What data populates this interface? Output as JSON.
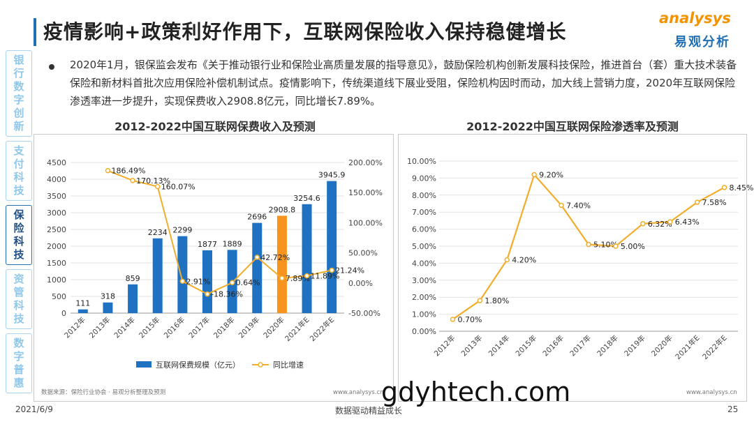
{
  "title": "疫情影响+政策利好作用下，互联网保险收入保持稳健增长",
  "logo": {
    "en": "analysys",
    "cn": "易观分析"
  },
  "sidebar": {
    "items": [
      {
        "label": "银行数字创新",
        "active": false
      },
      {
        "label": "支付科技",
        "active": false
      },
      {
        "label": "保险科技",
        "active": true
      },
      {
        "label": "资管科技",
        "active": false
      },
      {
        "label": "数字普惠",
        "active": false
      }
    ]
  },
  "bullet": "2020年1月，银保监会发布《关于推动银行业和保险业高质量发展的指导意见》，鼓励保险机构创新发展科技保险，推进首台（套）重大技术装备保险和新材料首批次应用保险补偿机制试点。疫情影响下，传统渠道线下展业受阻，保险机构因时而动，加大线上营销力度，2020年互联网保险渗透率进一步提升，实现保费收入2908.8亿元，同比增长7.89%。",
  "chart_data": [
    {
      "type": "bar",
      "title": "2012-2022中国互联网保费收入及预测",
      "categories": [
        "2012年",
        "2013年",
        "2014年",
        "2015年",
        "2016年",
        "2017年",
        "2018年",
        "2019年",
        "2020年",
        "2021年E",
        "2022年E"
      ],
      "series": [
        {
          "name": "互联网保费规模（亿元）",
          "type": "bar",
          "axis": "left",
          "values": [
            111,
            318,
            859,
            2234,
            2299,
            1877,
            1889,
            2696,
            2908.8,
            3254.6,
            3945.9
          ],
          "labels": [
            "111",
            "318",
            "859",
            "2234",
            "2299",
            "1877",
            "1889",
            "2696",
            "2908.8",
            "3254.6",
            "3945.9"
          ]
        },
        {
          "name": "同比增速",
          "type": "line",
          "axis": "right",
          "values": [
            null,
            186.49,
            170.13,
            160.07,
            2.91,
            -18.36,
            0.64,
            42.72,
            7.89,
            11.89,
            21.24
          ],
          "labels": [
            "",
            "186.49%",
            "170.13%",
            "160.07%",
            "2.91%",
            "-18.36%",
            "0.64%",
            "42.72%",
            "7.89%",
            "11.89%",
            "21.24%"
          ]
        }
      ],
      "ylim_left": [
        0,
        4500
      ],
      "yticks_left": [
        "0",
        "500",
        "1000",
        "1500",
        "2000",
        "2500",
        "3000",
        "3500",
        "4000",
        "4500"
      ],
      "ylim_right": [
        -50,
        200
      ],
      "yticks_right": [
        "-50.00%",
        "0.00%",
        "50.00%",
        "100.00%",
        "150.00%",
        "200.00%"
      ],
      "highlight_index": 8,
      "colors": {
        "bar": "#1f72c2",
        "highlight": "#f7941d",
        "line": "#f2ad2b"
      },
      "legend_position": "bottom",
      "source": "数据来源：保险行业协会 · 易观分析整理及预测",
      "watermark": "www.analysys.cn"
    },
    {
      "type": "line",
      "title": "2012-2022中国互联网保险渗透率及预测",
      "categories": [
        "2012年",
        "2013年",
        "2014年",
        "2015年",
        "2016年",
        "2017年",
        "2018年",
        "2019年",
        "2020年",
        "2021年E",
        "2022年E"
      ],
      "series": [
        {
          "name": "渗透率",
          "values": [
            0.7,
            1.8,
            4.2,
            9.2,
            7.4,
            5.1,
            5.0,
            6.32,
            6.43,
            7.58,
            8.45
          ],
          "labels": [
            "0.70%",
            "1.80%",
            "4.20%",
            "9.20%",
            "7.40%",
            "5.10%",
            "5.00%",
            "6.32%",
            "6.43%",
            "7.58%",
            "8.45%"
          ]
        }
      ],
      "ylim": [
        0,
        10
      ],
      "yticks": [
        "0.00%",
        "1.00%",
        "2.00%",
        "3.00%",
        "4.00%",
        "5.00%",
        "6.00%",
        "7.00%",
        "8.00%",
        "9.00%",
        "10.00%"
      ],
      "colors": {
        "line": "#f2ad2b"
      },
      "watermark": "www.analysys.cn"
    }
  ],
  "footer": {
    "date": "2021/6/9",
    "center": "数据驱动精益成长",
    "page": "25"
  },
  "overlay": "gdyhtech.com"
}
